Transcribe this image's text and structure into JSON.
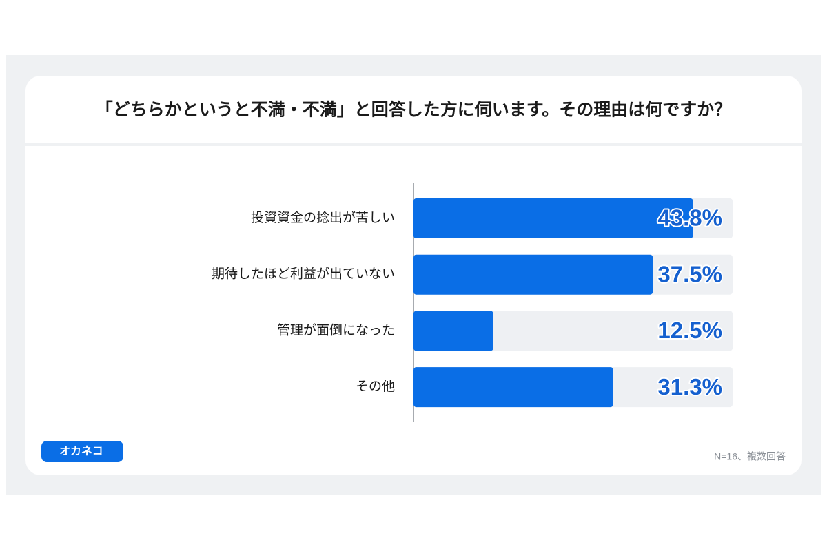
{
  "brand": "オカネコ",
  "chart_data": {
    "type": "bar",
    "orientation": "horizontal",
    "title": "「どちらかというと不満・不満」と回答した方に伺います。その理由は何ですか？",
    "categories": [
      "投資資金の捻出が苦しい",
      "期待したほど利益が出ていない",
      "管理が面倒になった",
      "その他"
    ],
    "values": [
      43.8,
      37.5,
      12.5,
      31.3
    ],
    "value_labels": [
      "43.8%",
      "37.5%",
      "12.5%",
      "31.3%"
    ],
    "color": "#0a6ee6",
    "track_color": "#eef0f3",
    "label_color": "#1560cf",
    "xlim": [
      0,
      50
    ],
    "note": "N=16、複数回答"
  }
}
